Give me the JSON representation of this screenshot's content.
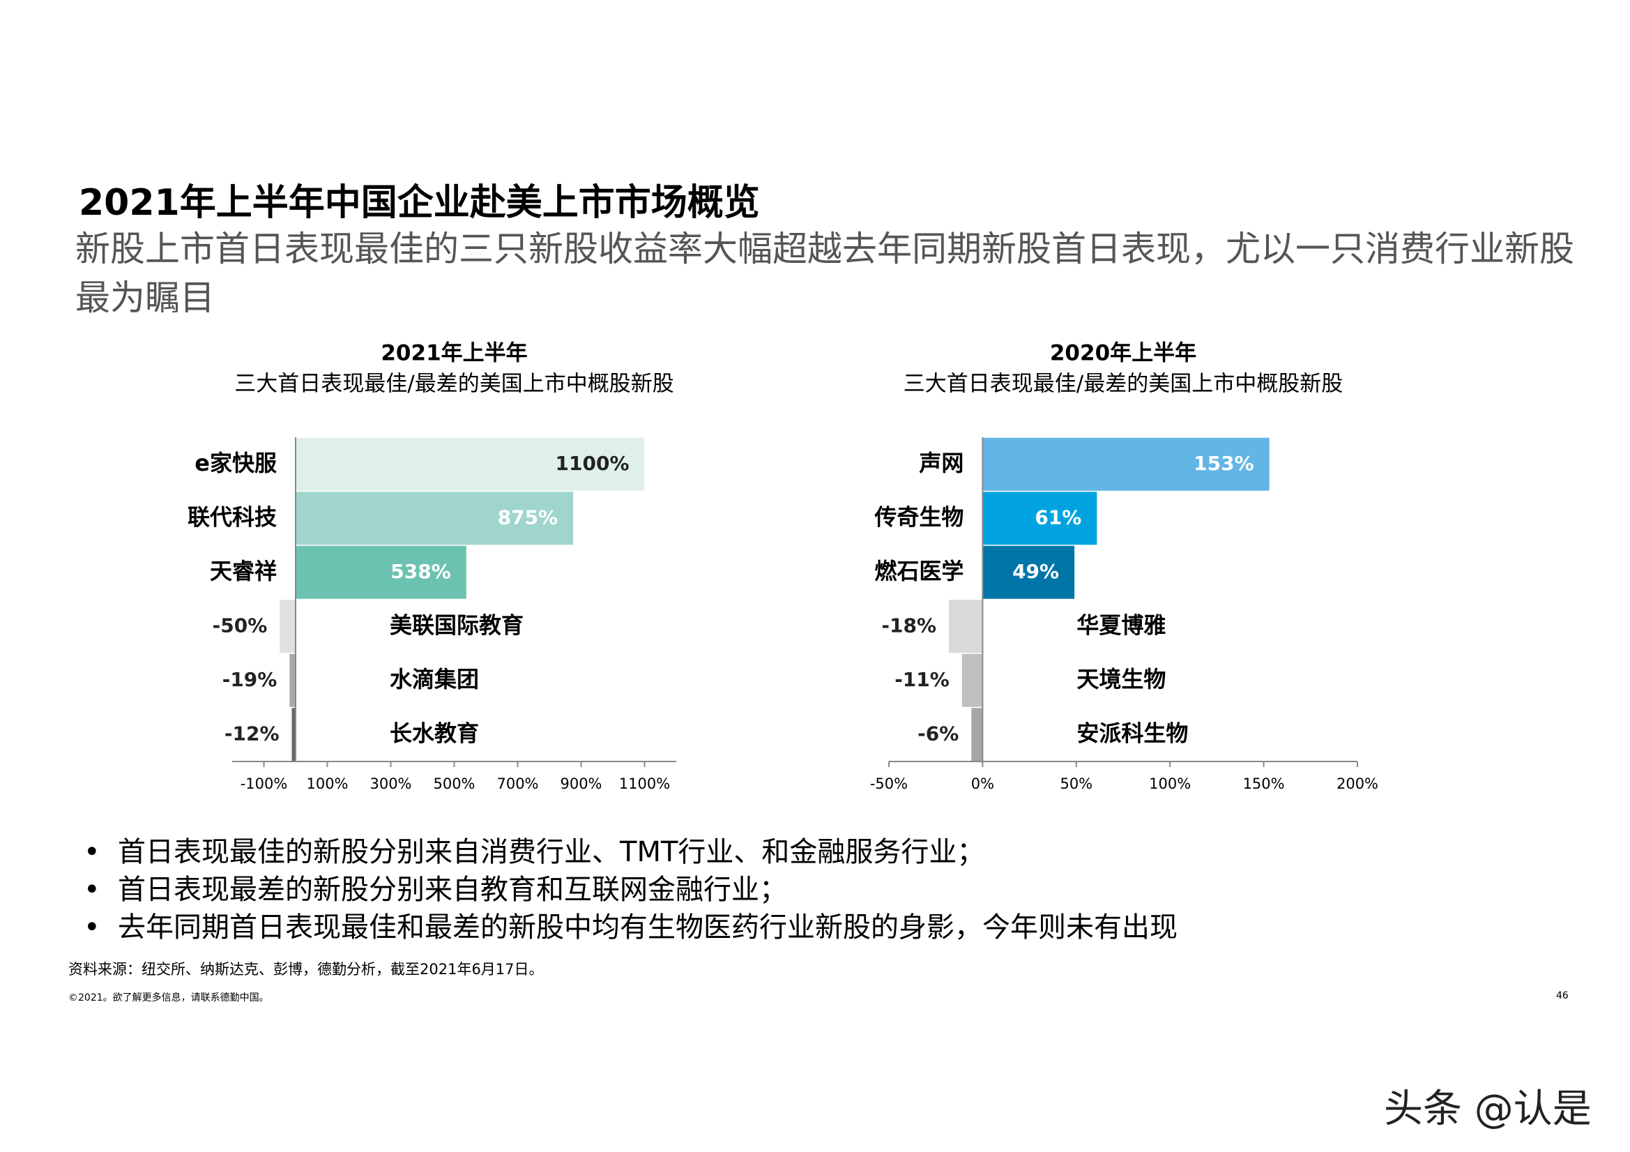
{
  "title": "2021年上半年中国企业赴美上市市场概览",
  "subtitle": "新股上市首日表现最佳的三只新股收益率大幅超越去年同期新股首日表现，尤以一只消费行业新股最为瞩目",
  "bullets": [
    "首日表现最佳的新股分别来自消费行业、TMT行业、和金融服务行业；",
    "首日表现最差的新股分别来自教育和互联网金融行业；",
    "去年同期首日表现最佳和最差的新股中均有生物医药行业新股的身影，今年则未有出现"
  ],
  "source": "资料来源：纽交所、纳斯达克、彭博，德勤分析，截至2021年6月17日。",
  "copyright": "©2021。欲了解更多信息，请联系德勤中国。",
  "page_number": "46",
  "watermark": "头条 @认是",
  "chart_data": [
    {
      "type": "hbar",
      "title": "2021年上半年",
      "subtitle": "三大首日表现最佳/最差的美国上市中概股新股",
      "categories": [
        "e家快服",
        "联代科技",
        "天睿祥",
        "美联国际教育",
        "水滴集团",
        "长水教育"
      ],
      "values": [
        1100,
        875,
        538,
        -50,
        -19,
        -12
      ],
      "value_labels": [
        "1100%",
        "875%",
        "538%",
        "-50%",
        "-19%",
        "-12%"
      ],
      "colors": [
        "#dff0ea",
        "#9fd5cc",
        "#6cc2b0",
        "#e0e0e0",
        "#a8a8a8",
        "#666666"
      ],
      "xlim": [
        -200,
        1200
      ],
      "xticks": [
        {
          "value": -100,
          "label": "-100%"
        },
        {
          "value": 100,
          "label": "100%"
        },
        {
          "value": 300,
          "label": "300%"
        },
        {
          "value": 500,
          "label": "500%"
        },
        {
          "value": 700,
          "label": "700%"
        },
        {
          "value": 900,
          "label": "900%"
        },
        {
          "value": 1100,
          "label": "1100%"
        }
      ]
    },
    {
      "type": "hbar",
      "title": "2020年上半年",
      "subtitle": "三大首日表现最佳/最差的美国上市中概股新股",
      "categories": [
        "声网",
        "传奇生物",
        "燃石医学",
        "华夏博雅",
        "天境生物",
        "安派科生物"
      ],
      "values": [
        153,
        61,
        49,
        -18,
        -11,
        -6
      ],
      "value_labels": [
        "153%",
        "61%",
        "49%",
        "-18%",
        "-11%",
        "-6%"
      ],
      "colors": [
        "#62b5e5",
        "#00a3e0",
        "#0076a8",
        "#d9d9d9",
        "#bfbfbf",
        "#a6a6a6"
      ],
      "xlim": [
        -50,
        200
      ],
      "xticks": [
        {
          "value": -50,
          "label": "-50%"
        },
        {
          "value": 0,
          "label": "0%"
        },
        {
          "value": 50,
          "label": "50%"
        },
        {
          "value": 100,
          "label": "100%"
        },
        {
          "value": 150,
          "label": "150%"
        },
        {
          "value": 200,
          "label": "200%"
        }
      ]
    }
  ]
}
